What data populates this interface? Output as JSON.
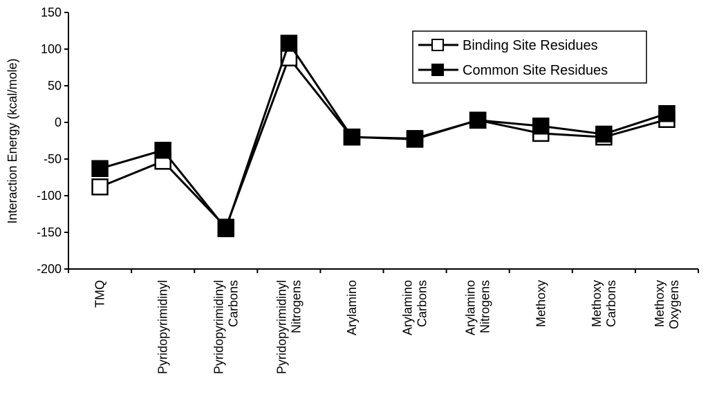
{
  "chart_data": {
    "type": "line",
    "y_label": "Interaction Energy (kcal/mole)",
    "categories": [
      "TMQ",
      "Pyridopyrimidinyl",
      "Pyridopyrimidinyl Carbons",
      "Pyridopyrimidinyl Nitrogens",
      "Arylamino",
      "Arylamino Carbons",
      "Arylamino Nitrogens",
      "Methoxy",
      "Methoxy Carbons",
      "Methoxy Oxygens"
    ],
    "series": [
      {
        "name": "Binding Site Residues",
        "color": "#ffffff",
        "values": [
          -88,
          -53,
          -143,
          88,
          -20,
          -23,
          3,
          -15,
          -20,
          4
        ]
      },
      {
        "name": "Common Site Residues",
        "color": "#000000",
        "values": [
          -63,
          -38,
          -145,
          108,
          -20,
          -22,
          3,
          -5,
          -16,
          12
        ]
      }
    ],
    "ylim": [
      -200,
      150
    ],
    "yticks": [
      -200,
      -150,
      -100,
      -50,
      0,
      50,
      100,
      150
    ],
    "legend": "upper-right",
    "grid": false
  }
}
